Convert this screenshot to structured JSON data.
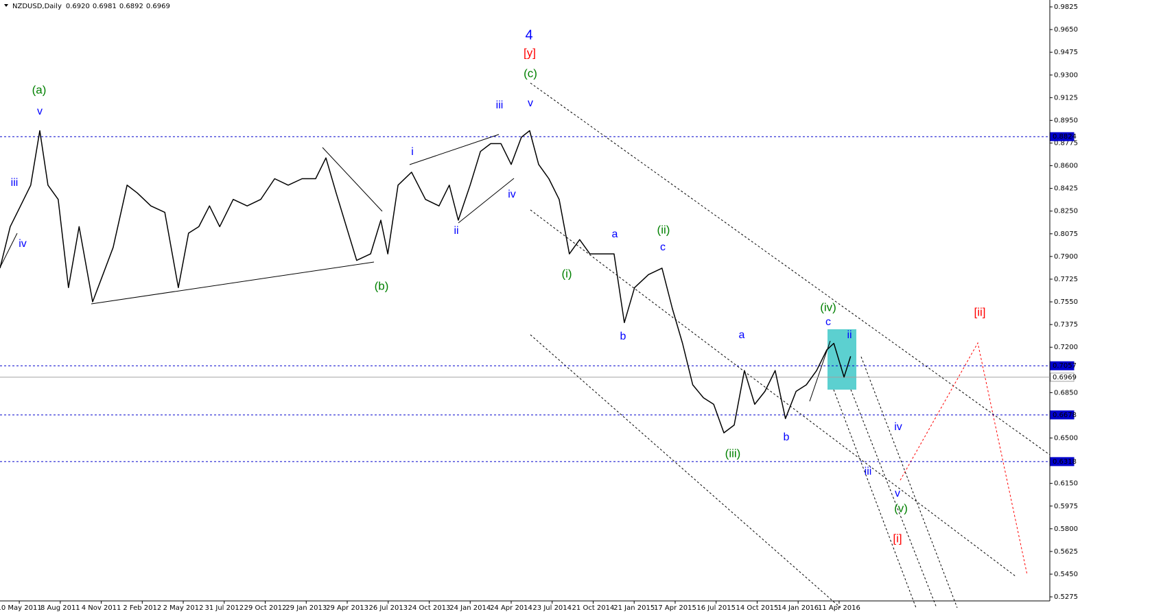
{
  "chart_data": {
    "type": "line",
    "title": "NZDUSD,Daily",
    "quote": [
      {
        "value": 0.692,
        "label": "0.6920"
      },
      {
        "value": 0.6981,
        "label": "0.6981"
      },
      {
        "value": 0.6892,
        "label": "0.6892"
      },
      {
        "value": 0.6969,
        "label": "0.6969"
      }
    ],
    "color": "#000000",
    "x": [
      -0.47,
      -0.22,
      0.03,
      0.28,
      0.5,
      0.7,
      0.95,
      1.2,
      1.46,
      1.79,
      2.04,
      2.29,
      2.63,
      2.88,
      3.21,
      3.55,
      3.88,
      4.13,
      4.38,
      4.64,
      4.89,
      5.22,
      5.56,
      5.89,
      6.23,
      6.56,
      6.9,
      7.23,
      7.48,
      7.73,
      7.98,
      8.23,
      8.57,
      8.82,
      8.99,
      9.24,
      9.57,
      9.91,
      10.24,
      10.49,
      10.71,
      11.0,
      11.25,
      11.5,
      11.75,
      12.0,
      12.25,
      12.45,
      12.67,
      12.92,
      13.17,
      13.42,
      13.67,
      13.92,
      14.26,
      14.51,
      14.76,
      15.01,
      15.35,
      15.68,
      15.93,
      16.18,
      16.43,
      16.69,
      16.94,
      17.19,
      17.44,
      17.69,
      17.94,
      18.19,
      18.44,
      18.69,
      18.95,
      19.2,
      19.45,
      19.7,
      19.87,
      20.12,
      20.28
    ],
    "values": [
      0.781,
      0.813,
      0.829,
      0.845,
      0.887,
      0.845,
      0.834,
      0.766,
      0.813,
      0.755,
      0.776,
      0.797,
      0.845,
      0.839,
      0.829,
      0.824,
      0.766,
      0.808,
      0.813,
      0.829,
      0.813,
      0.834,
      0.829,
      0.834,
      0.85,
      0.845,
      0.85,
      0.85,
      0.866,
      0.839,
      0.813,
      0.787,
      0.792,
      0.818,
      0.792,
      0.845,
      0.855,
      0.834,
      0.829,
      0.845,
      0.818,
      0.845,
      0.871,
      0.877,
      0.877,
      0.861,
      0.882,
      0.887,
      0.861,
      0.85,
      0.834,
      0.792,
      0.803,
      0.792,
      0.792,
      0.792,
      0.739,
      0.766,
      0.776,
      0.781,
      0.75,
      0.723,
      0.691,
      0.681,
      0.676,
      0.654,
      0.66,
      0.702,
      0.676,
      0.686,
      0.702,
      0.665,
      0.686,
      0.691,
      0.702,
      0.718,
      0.723,
      0.697,
      0.713
    ],
    "xlim": [
      -0.47,
      25.14
    ],
    "ylim": [
      0.5196,
      0.9878
    ],
    "xticks": [
      {
        "value": 0,
        "label": "10 May 2011"
      },
      {
        "value": 1,
        "label": "8 Aug 2011"
      },
      {
        "value": 2,
        "label": "4 Nov 2011"
      },
      {
        "value": 3,
        "label": "2 Feb 2012"
      },
      {
        "value": 4,
        "label": "2 May 2012"
      },
      {
        "value": 5,
        "label": "31 Jul 2012"
      },
      {
        "value": 6,
        "label": "29 Oct 2012"
      },
      {
        "value": 7,
        "label": "29 Jan 2013"
      },
      {
        "value": 8,
        "label": "29 Apr 2013"
      },
      {
        "value": 9,
        "label": "26 Jul 2013"
      },
      {
        "value": 10,
        "label": "24 Oct 2013"
      },
      {
        "value": 11,
        "label": "24 Jan 2014"
      },
      {
        "value": 12,
        "label": "24 Apr 2014"
      },
      {
        "value": 13,
        "label": "23 Jul 2014"
      },
      {
        "value": 14,
        "label": "21 Oct 2014"
      },
      {
        "value": 15,
        "label": "21 Jan 2015"
      },
      {
        "value": 16,
        "label": "17 Apr 2015"
      },
      {
        "value": 17,
        "label": "16 Jul 2015"
      },
      {
        "value": 18,
        "label": "14 Oct 2015"
      },
      {
        "value": 19,
        "label": "14 Jan 2016"
      },
      {
        "value": 20,
        "label": "11 Apr 2016"
      }
    ],
    "yticks": [
      {
        "value": 0.9825,
        "label": "0.9825"
      },
      {
        "value": 0.965,
        "label": "0.9650"
      },
      {
        "value": 0.9475,
        "label": "0.9475"
      },
      {
        "value": 0.93,
        "label": "0.9300"
      },
      {
        "value": 0.9125,
        "label": "0.9125"
      },
      {
        "value": 0.895,
        "label": "0.8950"
      },
      {
        "value": 0.8775,
        "label": "0.8775"
      },
      {
        "value": 0.86,
        "label": "0.8600"
      },
      {
        "value": 0.8425,
        "label": "0.8425"
      },
      {
        "value": 0.825,
        "label": "0.8250"
      },
      {
        "value": 0.8075,
        "label": "0.8075"
      },
      {
        "value": 0.79,
        "label": "0.7900"
      },
      {
        "value": 0.7725,
        "label": "0.7725"
      },
      {
        "value": 0.755,
        "label": "0.7550"
      },
      {
        "value": 0.7375,
        "label": "0.7375"
      },
      {
        "value": 0.72,
        "label": "0.7200"
      },
      {
        "value": 0.685,
        "label": "0.6850"
      },
      {
        "value": 0.65,
        "label": "0.6500"
      },
      {
        "value": 0.615,
        "label": "0.6150"
      },
      {
        "value": 0.5975,
        "label": "0.5975"
      },
      {
        "value": 0.58,
        "label": "0.5800"
      },
      {
        "value": 0.5625,
        "label": "0.5625"
      },
      {
        "value": 0.545,
        "label": "0.5450"
      },
      {
        "value": 0.5275,
        "label": "0.5275"
      }
    ],
    "levels": [
      {
        "value": 0.8824,
        "label": "0.8824",
        "color": "#0000cc"
      },
      {
        "value": 0.7057,
        "label": "0.7057",
        "color": "#0000cc"
      },
      {
        "value": 0.6969,
        "label": "0.6969",
        "color": "#a0a0a0"
      },
      {
        "value": 0.6678,
        "label": "0.6678",
        "color": "#0000cc"
      },
      {
        "value": 0.6318,
        "label": "0.6318",
        "color": "#0000cc"
      }
    ],
    "annotations": [
      {
        "text": "4",
        "color": "#0000ff"
      },
      {
        "text": "[y]",
        "color": "#ff0000"
      },
      {
        "text": "(c)",
        "color": "#008000"
      },
      {
        "text": "(a)",
        "color": "#008000"
      },
      {
        "text": "v",
        "color": "#0000ff"
      },
      {
        "text": "iii",
        "color": "#0000ff"
      },
      {
        "text": "iv",
        "color": "#0000ff"
      },
      {
        "text": "(b)",
        "color": "#008000"
      },
      {
        "text": "i",
        "color": "#0000ff"
      },
      {
        "text": "ii",
        "color": "#0000ff"
      },
      {
        "text": "iii",
        "color": "#0000ff"
      },
      {
        "text": "iv",
        "color": "#0000ff"
      },
      {
        "text": "v",
        "color": "#0000ff"
      },
      {
        "text": "a",
        "color": "#0000ff"
      },
      {
        "text": "b",
        "color": "#0000ff"
      },
      {
        "text": "c",
        "color": "#0000ff"
      },
      {
        "text": "(ii)",
        "color": "#008000"
      },
      {
        "text": "(i)",
        "color": "#008000"
      },
      {
        "text": "a",
        "color": "#0000ff"
      },
      {
        "text": "(iii)",
        "color": "#008000"
      },
      {
        "text": "b",
        "color": "#0000ff"
      },
      {
        "text": "(iv)",
        "color": "#008000"
      },
      {
        "text": "c",
        "color": "#0000ff"
      },
      {
        "text": "ii",
        "color": "#0000ff"
      },
      {
        "text": "[ii]",
        "color": "#ff0000"
      },
      {
        "text": "iv",
        "color": "#0000ff"
      },
      {
        "text": "iii",
        "color": "#0000ff"
      },
      {
        "text": "v",
        "color": "#0000ff"
      },
      {
        "text": "(v)",
        "color": "#008000"
      },
      {
        "text": "[i]",
        "color": "#ff0000"
      }
    ]
  }
}
